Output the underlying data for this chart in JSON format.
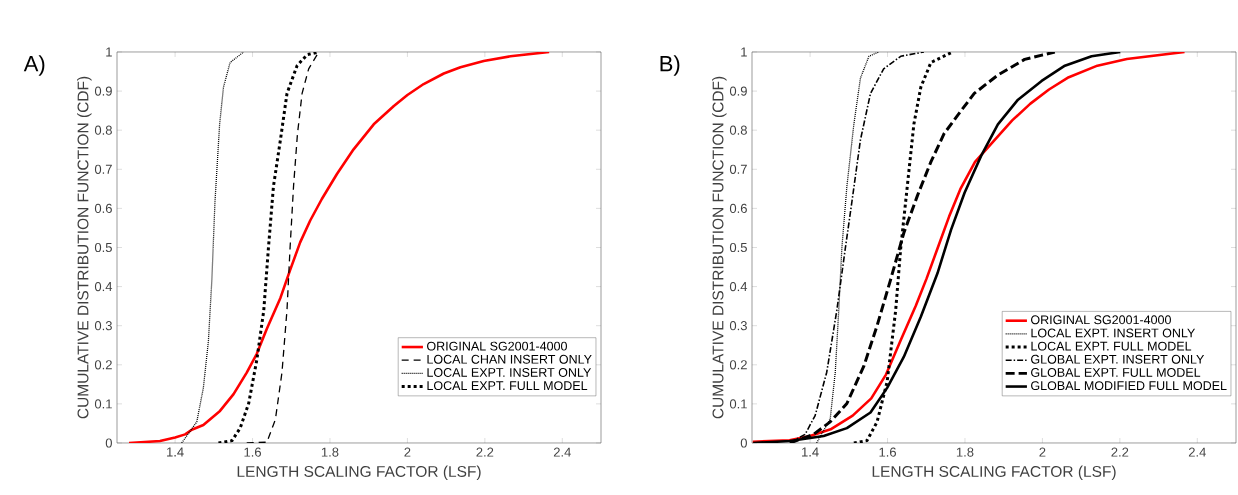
{
  "chart_data": [
    {
      "type": "line",
      "title": "A)",
      "xlabel": "LENGTH SCALING FACTOR (LSF)",
      "ylabel": "CUMULATIVE DISTRIBUTION FUNCTION (CDF)",
      "xlim": [
        1.25,
        2.5
      ],
      "ylim": [
        0,
        1
      ],
      "xticks": [
        1.4,
        1.6,
        1.8,
        2,
        2.2,
        2.4
      ],
      "yticks": [
        0,
        0.1,
        0.2,
        0.3,
        0.4,
        0.5,
        0.6,
        0.7,
        0.8,
        0.9,
        1
      ],
      "legend": "bottom right",
      "grid": false,
      "series": [
        {
          "name": "ORIGINAL SG2001-4000",
          "color": "#ff0000",
          "line_style": "solid",
          "x": [
            1.281,
            1.361,
            1.4,
            1.426,
            1.443,
            1.473,
            1.516,
            1.551,
            1.585,
            1.611,
            1.637,
            1.672,
            1.697,
            1.723,
            1.749,
            1.779,
            1.818,
            1.861,
            1.913,
            1.965,
            2.0,
            2.042,
            2.094,
            2.137,
            2.197,
            2.266,
            2.366
          ],
          "values": [
            0,
            0.005,
            0.014,
            0.022,
            0.034,
            0.046,
            0.082,
            0.125,
            0.18,
            0.228,
            0.292,
            0.371,
            0.442,
            0.513,
            0.569,
            0.624,
            0.688,
            0.751,
            0.815,
            0.862,
            0.89,
            0.918,
            0.945,
            0.961,
            0.977,
            0.989,
            1.0
          ]
        },
        {
          "name": "LOCAL CHAN INSERT ONLY",
          "color": "#000000",
          "line_style": "dashed",
          "x": [
            1.585,
            1.637,
            1.659,
            1.676,
            1.689,
            1.697,
            1.706,
            1.716,
            1.728,
            1.745,
            1.771
          ],
          "values": [
            0,
            0.002,
            0.06,
            0.18,
            0.34,
            0.5,
            0.658,
            0.79,
            0.894,
            0.957,
            1.0
          ]
        },
        {
          "name": "LOCAL EXPT. INSERT ONLY",
          "color": "#000000",
          "line_style": "dotted",
          "x": [
            1.417,
            1.456,
            1.473,
            1.486,
            1.495,
            1.503,
            1.515,
            1.525,
            1.542,
            1.577
          ],
          "values": [
            0,
            0.054,
            0.141,
            0.26,
            0.418,
            0.617,
            0.815,
            0.91,
            0.973,
            1.0
          ]
        },
        {
          "name": "LOCAL EXPT. FULL MODEL",
          "color": "#000000",
          "line_style": "thick dotted",
          "x": [
            1.512,
            1.547,
            1.568,
            1.59,
            1.611,
            1.629,
            1.641,
            1.654,
            1.672,
            1.689,
            1.715,
            1.741,
            1.771
          ],
          "values": [
            0,
            0.006,
            0.038,
            0.101,
            0.212,
            0.339,
            0.498,
            0.656,
            0.775,
            0.894,
            0.965,
            0.993,
            1.0
          ]
        }
      ]
    },
    {
      "type": "line",
      "title": "B)",
      "xlabel": "LENGTH SCALING FACTOR (LSF)",
      "ylabel": "CUMULATIVE DISTRIBUTION FUNCTION (CDF)",
      "xlim": [
        1.25,
        2.5
      ],
      "ylim": [
        0,
        1
      ],
      "xticks": [
        1.4,
        1.6,
        1.8,
        2,
        2.2,
        2.4
      ],
      "yticks": [
        0,
        0.1,
        0.2,
        0.3,
        0.4,
        0.5,
        0.6,
        0.7,
        0.8,
        0.9,
        1
      ],
      "legend": "bottom right",
      "grid": false,
      "series": [
        {
          "name": "ORIGINAL SG2001-4000",
          "color": "#ff0000",
          "line_style": "solid",
          "x": [
            1.252,
            1.347,
            1.4,
            1.453,
            1.51,
            1.558,
            1.596,
            1.634,
            1.673,
            1.701,
            1.73,
            1.759,
            1.788,
            1.826,
            1.874,
            1.922,
            1.969,
            2.017,
            2.065,
            2.142,
            2.218,
            2.367
          ],
          "values": [
            0.003,
            0.007,
            0.018,
            0.035,
            0.07,
            0.114,
            0.175,
            0.263,
            0.351,
            0.421,
            0.5,
            0.579,
            0.649,
            0.719,
            0.772,
            0.825,
            0.868,
            0.904,
            0.934,
            0.965,
            0.982,
            1.0
          ]
        },
        {
          "name": "LOCAL EXPT. INSERT ONLY",
          "color": "#000000",
          "line_style": "dotted",
          "x": [
            1.417,
            1.452,
            1.465,
            1.474,
            1.482,
            1.495,
            1.513,
            1.53,
            1.552,
            1.577
          ],
          "values": [
            0,
            0.062,
            0.181,
            0.339,
            0.498,
            0.656,
            0.815,
            0.933,
            0.989,
            1.0
          ]
        },
        {
          "name": "LOCAL EXPT. FULL MODEL",
          "color": "#000000",
          "line_style": "thick dotted",
          "x": [
            1.513,
            1.547,
            1.573,
            1.599,
            1.621,
            1.634,
            1.651,
            1.668,
            1.686,
            1.712,
            1.768
          ],
          "values": [
            0,
            0.006,
            0.054,
            0.157,
            0.339,
            0.498,
            0.656,
            0.815,
            0.91,
            0.973,
            1.0
          ]
        },
        {
          "name": "GLOBAL EXPT. INSERT ONLY",
          "color": "#000000",
          "line_style": "dashdot",
          "x": [
            1.348,
            1.387,
            1.413,
            1.443,
            1.469,
            1.491,
            1.508,
            1.53,
            1.556,
            1.59,
            1.634,
            1.694
          ],
          "values": [
            0,
            0.022,
            0.07,
            0.181,
            0.339,
            0.498,
            0.617,
            0.775,
            0.894,
            0.957,
            0.989,
            1.0
          ]
        },
        {
          "name": "GLOBAL EXPT. FULL MODEL",
          "color": "#000000",
          "line_style": "thick dashed",
          "x": [
            1.348,
            1.409,
            1.452,
            1.495,
            1.539,
            1.573,
            1.608,
            1.642,
            1.677,
            1.712,
            1.746,
            1.781,
            1.824,
            1.885,
            1.954,
            2.032
          ],
          "values": [
            0,
            0.022,
            0.054,
            0.101,
            0.197,
            0.3,
            0.418,
            0.537,
            0.632,
            0.719,
            0.791,
            0.838,
            0.894,
            0.941,
            0.981,
            1.0
          ]
        },
        {
          "name": "GLOBAL MODIFIED FULL MODEL",
          "color": "#000000",
          "line_style": "solid",
          "x": [
            1.253,
            1.348,
            1.435,
            1.495,
            1.556,
            1.599,
            1.642,
            1.686,
            1.729,
            1.764,
            1.799,
            1.842,
            1.885,
            1.937,
            1.998,
            2.058,
            2.127,
            2.201
          ],
          "values": [
            0,
            0.005,
            0.018,
            0.038,
            0.078,
            0.141,
            0.22,
            0.323,
            0.434,
            0.545,
            0.64,
            0.735,
            0.815,
            0.878,
            0.926,
            0.965,
            0.989,
            1.0
          ]
        }
      ]
    }
  ]
}
